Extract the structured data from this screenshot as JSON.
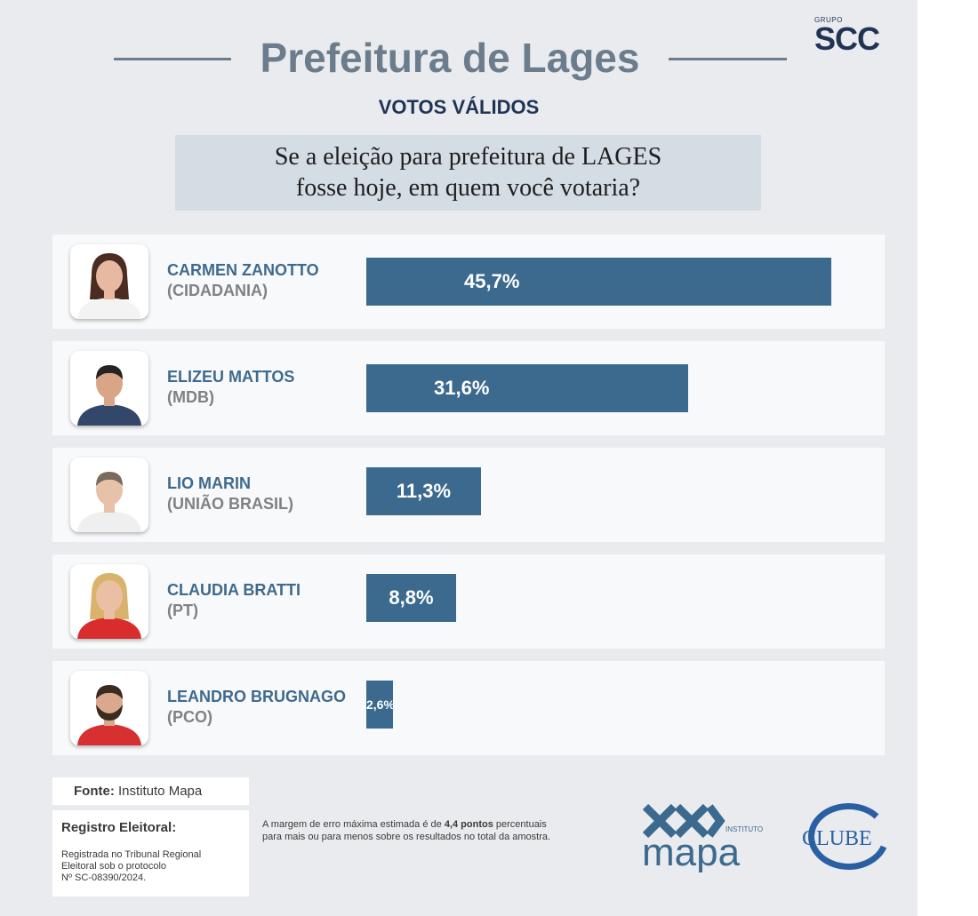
{
  "brand": {
    "group_label": "GRUPO",
    "name": "SCC"
  },
  "header": {
    "title": "Prefeitura de Lages",
    "subtitle": "VOTOS VÁLIDOS",
    "question_line1": "Se a eleição para prefeitura de LAGES",
    "question_line2": "fosse hoje, em quem você votaria?"
  },
  "colors": {
    "bar": "#3c6a8e",
    "name_text": "#3f6a8d",
    "party_text": "#7f8185",
    "title": "#6b7d8c",
    "navy": "#1f3455"
  },
  "chart_data": {
    "type": "bar",
    "orientation": "horizontal",
    "title": "Prefeitura de Lages",
    "subtitle": "VOTOS VÁLIDOS",
    "xlabel": "",
    "ylabel": "",
    "unit": "%",
    "xlim": [
      0,
      45.7
    ],
    "grid": false,
    "categories": [
      "CARMEN ZANOTTO",
      "ELIZEU MATTOS",
      "LIO MARIN",
      "CLAUDIA BRATTI",
      "LEANDRO BRUGNAGO"
    ],
    "parties": [
      "(CIDADANIA)",
      "(MDB)",
      "(UNIÃO BRASIL)",
      "(PT)",
      "(PCO)"
    ],
    "values": [
      45.7,
      31.6,
      11.3,
      8.8,
      2.6
    ],
    "labels": [
      "45,7%",
      "31,6%",
      "11,3%",
      "8,8%",
      "2,6%"
    ]
  },
  "footer": {
    "source_label": "Fonte:",
    "source_value": "Instituto Mapa",
    "registro_title": "Registro Eleitoral:",
    "registro_line1": "Registrada no Tribunal Regional",
    "registro_line2": "Eleitoral sob o protocolo",
    "registro_line3": "Nº SC-08390/2024.",
    "margin_part1": "A margem de erro máxima estimada é de ",
    "margin_bold": "4,4 pontos",
    "margin_part2": " percentuais",
    "margin_line2": "para mais ou para menos sobre os resultados no total da amostra."
  },
  "logos": {
    "mapa_small": "INSTITUTO",
    "mapa_big": "mapa",
    "clube": "CLUBE"
  }
}
